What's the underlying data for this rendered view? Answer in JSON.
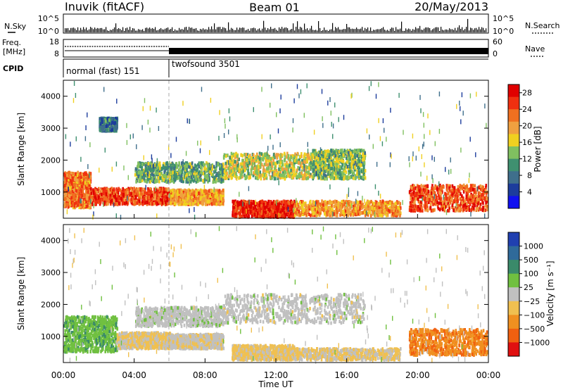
{
  "header": {
    "station": "Inuvik (fitACF)",
    "beam": "Beam 01",
    "date": "20/May/2013"
  },
  "summary_panels": {
    "nsky": {
      "label": "N.Sky",
      "ticks": [
        "10^5",
        "10^0"
      ]
    },
    "nsearch": {
      "label": "N.Search",
      "ticks": [
        "10^5",
        "10^0"
      ]
    },
    "freq": {
      "label_1": "Freq.",
      "label_2": "[MHz]",
      "ticks": [
        "18",
        "8"
      ]
    },
    "nave": {
      "label": "Nave",
      "ticks": [
        "60",
        "0"
      ]
    },
    "cpid": {
      "label": "CPID",
      "modes": [
        {
          "name": "normal (fast) 151",
          "start_hour": 0,
          "end_hour": 6
        },
        {
          "name": "twofsound 3501",
          "start_hour": 6,
          "end_hour": 24
        }
      ]
    }
  },
  "x_axis": {
    "title": "Time UT",
    "ticks": [
      "00:00",
      "04:00",
      "08:00",
      "12:00",
      "16:00",
      "20:00",
      "00:00"
    ]
  },
  "colors": {
    "power": [
      "#1010f0",
      "#1c3c9c",
      "#3f6f8c",
      "#3f9070",
      "#80c060",
      "#f0d020",
      "#f0a040",
      "#f07020",
      "#f03010",
      "#e00000"
    ],
    "velocity": [
      "#2040b0",
      "#2f6a9a",
      "#3a8a6a",
      "#70c040",
      "#c0c0c0",
      "#f0c050",
      "#f09020",
      "#f06010",
      "#e01010"
    ]
  },
  "chart_data": [
    {
      "type": "heatmap",
      "name": "power",
      "ylabel": "Slant Range [km]",
      "ylim": [
        180,
        4500
      ],
      "y_ticks": [
        "1000",
        "2000",
        "3000",
        "4000"
      ],
      "xlim": [
        0,
        24
      ],
      "colorbar": {
        "label": "Power [dB]",
        "ticks": [
          "4",
          "8",
          "12",
          "16",
          "20",
          "24",
          "28"
        ],
        "range": [
          0,
          30
        ]
      },
      "bands": [
        {
          "t": [
            0,
            1.5
          ],
          "r": [
            500,
            1600
          ],
          "v": 22
        },
        {
          "t": [
            1.5,
            6
          ],
          "r": [
            600,
            1100
          ],
          "v": 25
        },
        {
          "t": [
            6,
            9
          ],
          "r": [
            600,
            1050
          ],
          "v": 20
        },
        {
          "t": [
            9.5,
            13
          ],
          "r": [
            200,
            700
          ],
          "v": 27
        },
        {
          "t": [
            13,
            19
          ],
          "r": [
            250,
            700
          ],
          "v": 20
        },
        {
          "t": [
            19.5,
            24
          ],
          "r": [
            400,
            1200
          ],
          "v": 24
        },
        {
          "t": [
            4,
            9
          ],
          "r": [
            1300,
            1900
          ],
          "v": 12
        },
        {
          "t": [
            9,
            14
          ],
          "r": [
            1400,
            2200
          ],
          "v": 16
        },
        {
          "t": [
            14,
            17
          ],
          "r": [
            1400,
            2300
          ],
          "v": 13
        },
        {
          "t": [
            2,
            3
          ],
          "r": [
            2900,
            3300
          ],
          "v": 8
        },
        {
          "t": [
            0,
            24
          ],
          "r": [
            200,
            4400
          ],
          "v": 10
        }
      ]
    },
    {
      "type": "heatmap",
      "name": "velocity",
      "ylabel": "Slant Range [km]",
      "ylim": [
        180,
        4500
      ],
      "y_ticks": [
        "1000",
        "2000",
        "3000",
        "4000"
      ],
      "xlim": [
        0,
        24
      ],
      "colorbar": {
        "label": "Velocity [m s⁻¹]",
        "ticks": [
          "1000",
          "500",
          "100",
          "25",
          "−25",
          "−100",
          "−500",
          "−1000"
        ],
        "range": [
          -1200,
          1200
        ]
      },
      "bands": [
        {
          "t": [
            0,
            3
          ],
          "r": [
            500,
            1600
          ],
          "v": 300
        },
        {
          "t": [
            3,
            6
          ],
          "r": [
            600,
            1100
          ],
          "v": -150
        },
        {
          "t": [
            6,
            9
          ],
          "r": [
            600,
            1050
          ],
          "v": -80
        },
        {
          "t": [
            9.5,
            13
          ],
          "r": [
            250,
            700
          ],
          "v": -200
        },
        {
          "t": [
            13,
            19
          ],
          "r": [
            250,
            600
          ],
          "v": -150
        },
        {
          "t": [
            19.5,
            24
          ],
          "r": [
            400,
            1200
          ],
          "v": -600
        },
        {
          "t": [
            4,
            9
          ],
          "r": [
            1300,
            1900
          ],
          "v": 10
        },
        {
          "t": [
            9,
            17
          ],
          "r": [
            1400,
            2300
          ],
          "v": 0
        },
        {
          "t": [
            0,
            24
          ],
          "r": [
            200,
            4400
          ],
          "v": 30
        }
      ]
    }
  ]
}
